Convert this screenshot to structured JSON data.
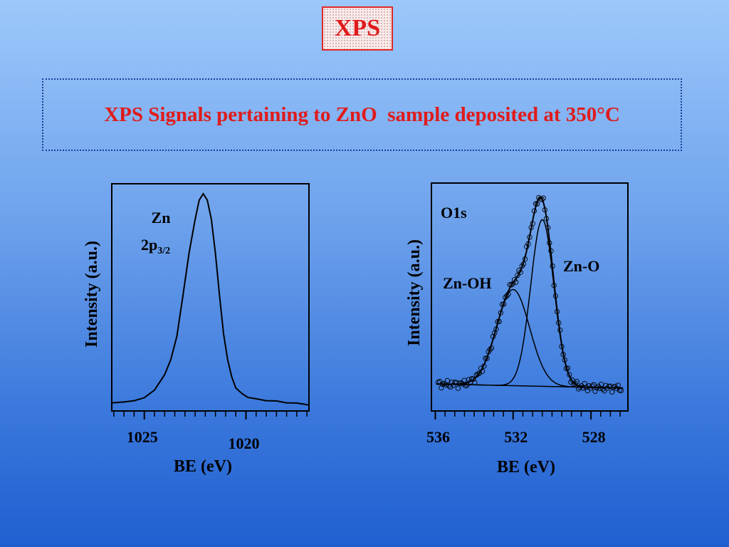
{
  "header": {
    "badge": "XPS"
  },
  "subtitle": "XPS Signals pertaining to ZnO  sample deposited at 350°C",
  "chart_data": [
    {
      "type": "line",
      "title": "",
      "annotation": {
        "line1": "Zn",
        "line2_main": "2p",
        "line2_sub": "3/2"
      },
      "xlabel": "BE (eV)",
      "ylabel": "Intensity (a.u.)",
      "x_reversed": true,
      "xlim": [
        1026.6,
        1016.9
      ],
      "ylim": [
        0,
        1.05
      ],
      "xticks_major": [
        1025,
        1020
      ],
      "xticks_minor": [
        1026.5,
        1026,
        1025.5,
        1024.5,
        1024,
        1023.5,
        1023,
        1022.5,
        1022,
        1021.5,
        1021,
        1020.5,
        1019.5,
        1019,
        1018.5,
        1018,
        1017.5,
        1017
      ],
      "series": [
        {
          "x": [
            1026.6,
            1026.0,
            1025.5,
            1025.0,
            1024.5,
            1024.0,
            1023.7,
            1023.4,
            1023.1,
            1022.8,
            1022.5,
            1022.3,
            1022.1,
            1021.9,
            1021.7,
            1021.5,
            1021.3,
            1021.1,
            1020.9,
            1020.7,
            1020.5,
            1020.2,
            1019.9,
            1019.5,
            1019.0,
            1018.5,
            1018.0,
            1017.5,
            1016.9
          ],
          "y": [
            0.02,
            0.02,
            0.03,
            0.04,
            0.08,
            0.15,
            0.22,
            0.33,
            0.52,
            0.72,
            0.88,
            0.97,
            1.0,
            0.97,
            0.88,
            0.72,
            0.52,
            0.34,
            0.22,
            0.14,
            0.09,
            0.06,
            0.045,
            0.035,
            0.03,
            0.025,
            0.02,
            0.015,
            0.01
          ]
        }
      ]
    },
    {
      "type": "line",
      "title": "",
      "annotation": "O1s",
      "xlabel": "BE (eV)",
      "ylabel": "Intensity (a.u.)",
      "x_reversed": true,
      "xlim": [
        536.2,
        526.1
      ],
      "ylim": [
        0,
        1.05
      ],
      "xticks_major": [
        536,
        532,
        528
      ],
      "xticks_minor": [
        535.5,
        535,
        534.5,
        534,
        533.5,
        533,
        532.5,
        531.5,
        531,
        530.5,
        530,
        529.5,
        529,
        528.5,
        527.5,
        527,
        526.5
      ],
      "series": [
        {
          "name": "Zn-OH",
          "center": 532.0,
          "height": 0.45,
          "fwhm": 2.0
        },
        {
          "name": "Zn-O",
          "center": 530.5,
          "height": 0.78,
          "fwhm": 1.4
        },
        {
          "name": "",
          "baseline": [
            0.02,
            0.0
          ]
        }
      ],
      "measured_points": "open circles following the summed fit"
    }
  ]
}
